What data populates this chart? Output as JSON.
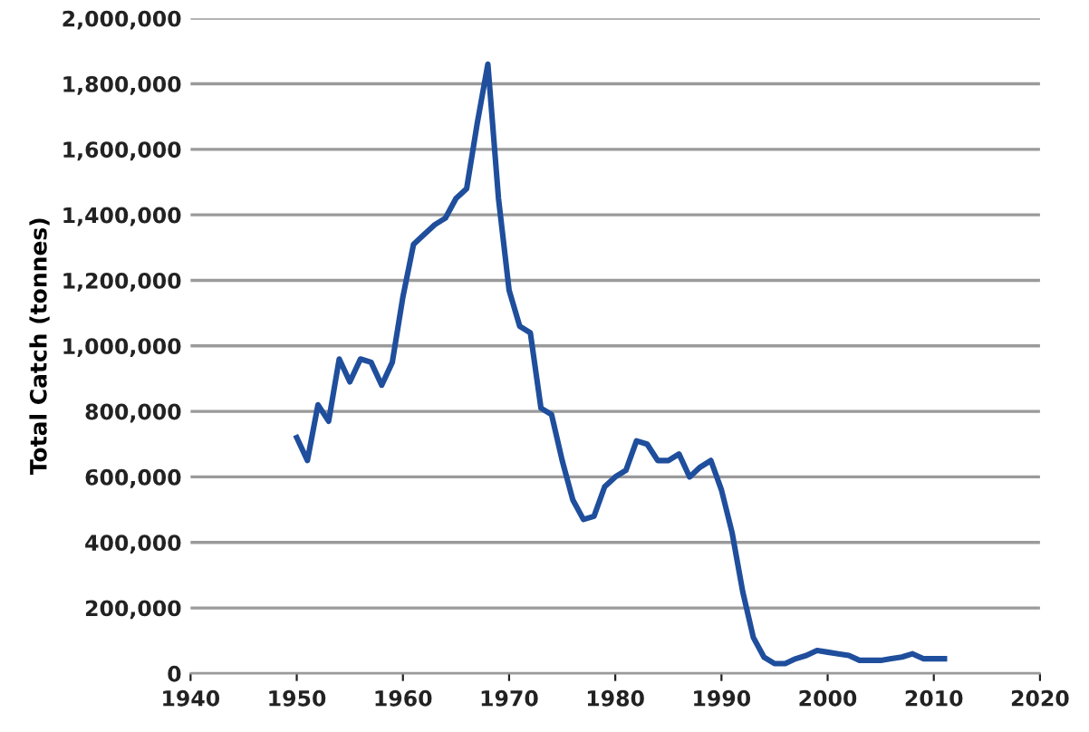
{
  "chart_data": {
    "type": "line",
    "ylabel": "Total Catch (tonnes)",
    "x": [
      1950,
      1951,
      1952,
      1953,
      1954,
      1955,
      1956,
      1957,
      1958,
      1959,
      1960,
      1961,
      1962,
      1963,
      1964,
      1965,
      1966,
      1967,
      1968,
      1969,
      1970,
      1971,
      1972,
      1973,
      1974,
      1975,
      1976,
      1977,
      1978,
      1979,
      1980,
      1981,
      1982,
      1983,
      1984,
      1985,
      1986,
      1987,
      1988,
      1989,
      1990,
      1991,
      1992,
      1993,
      1994,
      1995,
      1996,
      1997,
      1998,
      1999,
      2000,
      2001,
      2002,
      2003,
      2004,
      2005,
      2006,
      2007,
      2008,
      2009,
      2010,
      2011
    ],
    "series": [
      {
        "color": "#1f4e9c",
        "values": [
          720000,
          650000,
          820000,
          770000,
          960000,
          890000,
          960000,
          950000,
          880000,
          950000,
          1150000,
          1310000,
          1340000,
          1370000,
          1390000,
          1450000,
          1480000,
          1680000,
          1860000,
          1450000,
          1170000,
          1060000,
          1040000,
          810000,
          790000,
          650000,
          530000,
          470000,
          480000,
          570000,
          600000,
          620000,
          710000,
          700000,
          650000,
          650000,
          670000,
          600000,
          630000,
          650000,
          560000,
          430000,
          250000,
          110000,
          50000,
          30000,
          30000,
          45000,
          55000,
          70000,
          65000,
          60000,
          55000,
          40000,
          40000,
          40000,
          45000,
          50000,
          60000,
          45000,
          45000,
          45000
        ]
      }
    ],
    "xlim": [
      1940,
      2020
    ],
    "xticks": [
      1940,
      1950,
      1960,
      1970,
      1980,
      1990,
      2000,
      2010,
      2020
    ],
    "ylim": [
      0,
      2000000
    ],
    "yticks": [
      {
        "value": 0,
        "label": "0"
      },
      {
        "value": 200000,
        "label": "200,000"
      },
      {
        "value": 400000,
        "label": "400,000"
      },
      {
        "value": 600000,
        "label": "600,000"
      },
      {
        "value": 800000,
        "label": "800,000"
      },
      {
        "value": 1000000,
        "label": "1,000,000"
      },
      {
        "value": 1200000,
        "label": "1,200,000"
      },
      {
        "value": 1400000,
        "label": "1,400,000"
      },
      {
        "value": 1600000,
        "label": "1,600,000"
      },
      {
        "value": 1800000,
        "label": "1,800,000"
      },
      {
        "value": 2000000,
        "label": "2,000,000"
      }
    ],
    "grid": "y",
    "marker": "none",
    "line_style": "solid"
  }
}
